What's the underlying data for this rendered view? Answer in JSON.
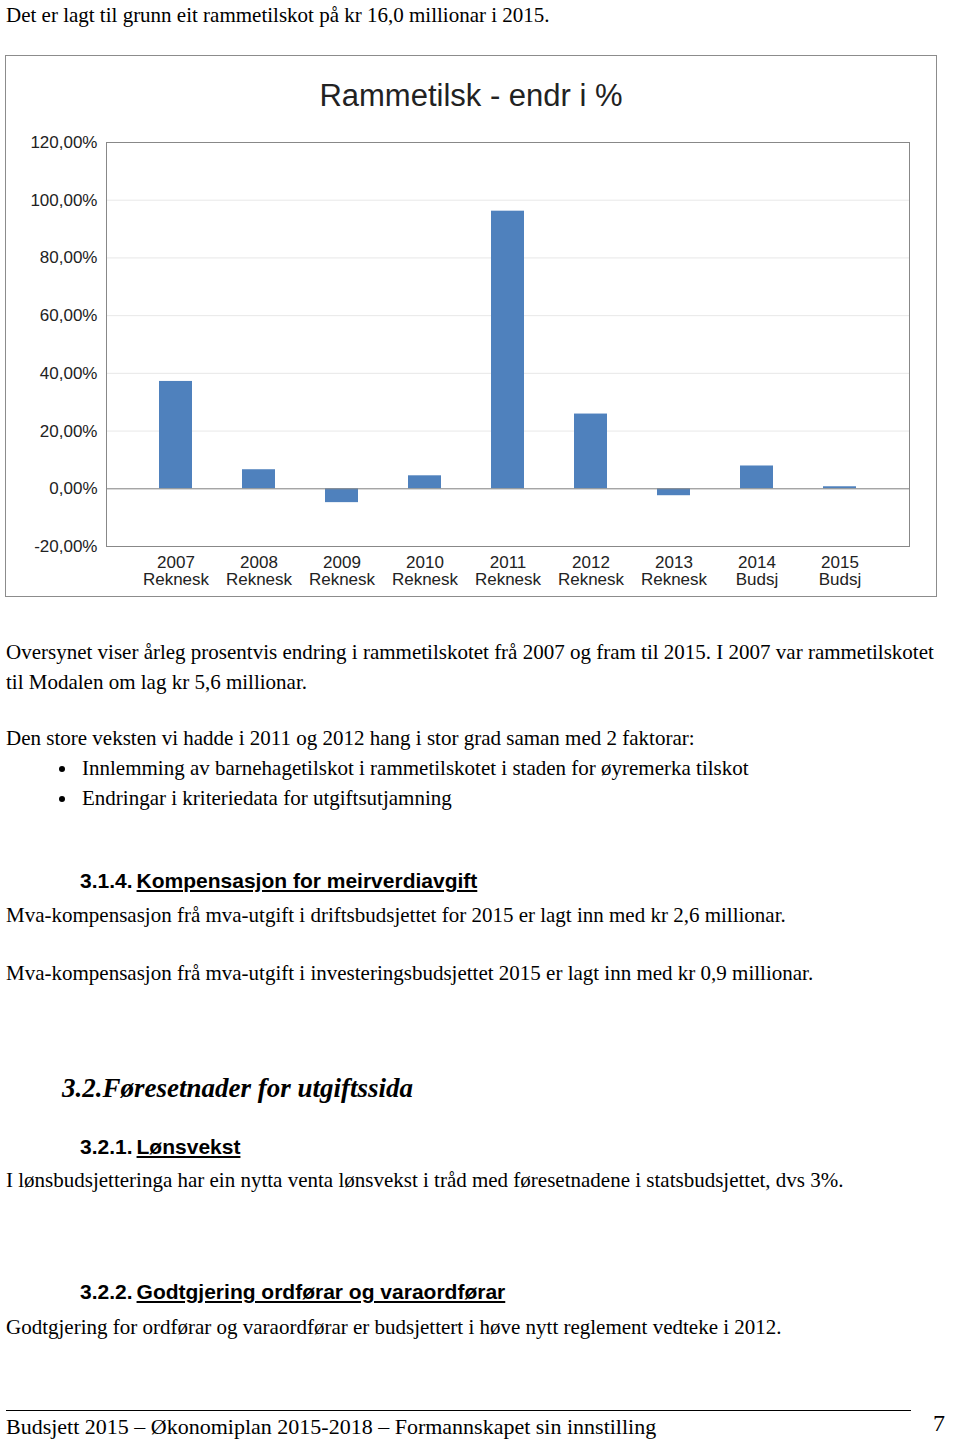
{
  "intro": "Det er lagt til grunn eit rammetilskot på kr 16,0 millionar i 2015.",
  "chart_data": {
    "type": "bar",
    "title": "Rammetilsk - endr i %",
    "categories": [
      "2007\nReknesk",
      "2008\nReknesk",
      "2009\nReknesk",
      "2010\nReknesk",
      "2011\nReknesk",
      "2012\nReknesk",
      "2013\nReknesk",
      "2014\nBudsj",
      "2015\nBudsj"
    ],
    "values": [
      37.2,
      6.6,
      -4.8,
      4.5,
      96.2,
      25.9,
      -2.4,
      7.9,
      0.7
    ],
    "color": "#4f81bd",
    "ylim": [
      -20,
      120
    ],
    "yticks": [
      {
        "value": -20,
        "label": "-20,00%"
      },
      {
        "value": 0,
        "label": "0,00%"
      },
      {
        "value": 20,
        "label": "20,00%"
      },
      {
        "value": 40,
        "label": "40,00%"
      },
      {
        "value": 60,
        "label": "60,00%"
      },
      {
        "value": 80,
        "label": "80,00%"
      },
      {
        "value": 100,
        "label": "100,00%"
      },
      {
        "value": 120,
        "label": "120,00%"
      }
    ],
    "grid": true
  },
  "chart_caption": "Oversynet viser årleg prosentvis endring i rammetilskotet frå 2007 og fram til 2015. I 2007 var rammetilskotet til Modalen om lag kr 5,6 millionar.",
  "growth_note": {
    "text": "Den store veksten vi hadde i 2011 og 2012  hang i stor grad saman med 2 faktorar:",
    "bullets": [
      "Innlemming av barnehagetilskot i rammetilskotet i staden for øyremerka tilskot",
      "Endringar i kriteriedata for utgiftsutjamning"
    ]
  },
  "section_3_1_4": {
    "number": "3.1.4.",
    "title": "Kompensasjon for meirverdiavgift",
    "paragraphs": [
      "Mva-kompensasjon frå mva-utgift i driftsbudsjettet for 2015 er lagt inn med kr 2,6 millionar.",
      "Mva-kompensasjon frå mva-utgift i investeringsbudsjettet 2015 er lagt inn med kr 0,9 millionar."
    ]
  },
  "section_3_2": {
    "number": "3.2.",
    "title": "Føresetnader for utgiftssida"
  },
  "section_3_2_1": {
    "number": "3.2.1.",
    "title": "Lønsvekst",
    "paragraphs": [
      "I lønsbudsjetteringa har ein nytta venta lønsvekst i tråd med føresetnadene i statsbudsjettet, dvs 3%."
    ]
  },
  "section_3_2_2": {
    "number": "3.2.2.",
    "title": "Godtgjering ordførar og varaordførar",
    "paragraphs": [
      "Godtgjering for ordførar og varaordførar er budsjettert i høve nytt reglement vedteke i 2012."
    ]
  },
  "footer": {
    "text": "Budsjett 2015 – Økonomiplan 2015-2018 – Formannskapet sin innstilling",
    "page": 7
  }
}
